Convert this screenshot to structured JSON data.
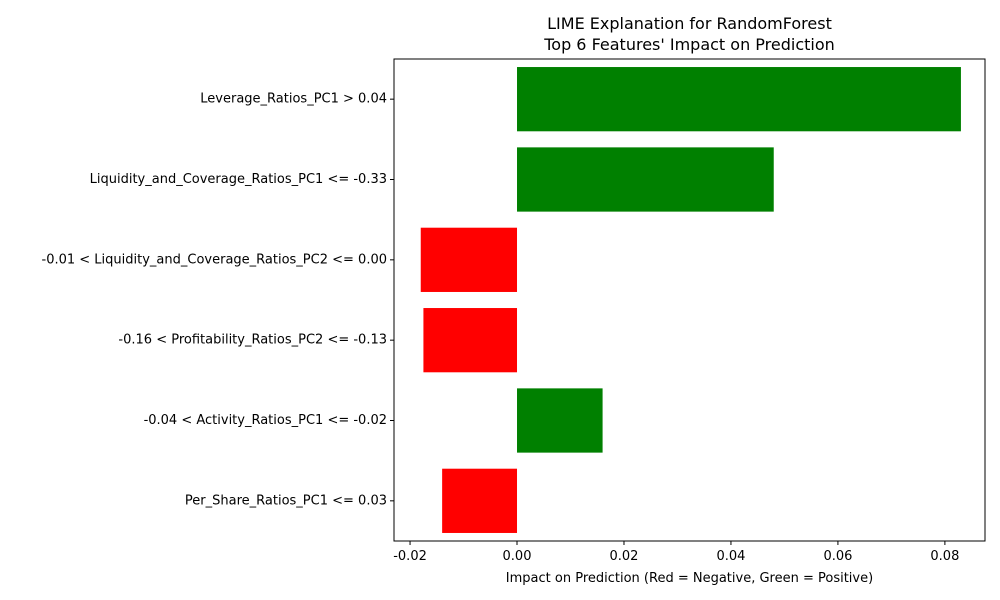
{
  "chart_data": {
    "type": "bar",
    "orientation": "horizontal",
    "title": "LIME Explanation for RandomForest",
    "subtitle": "Top 6 Features' Impact on Prediction",
    "xlabel": "Impact on Prediction (Red = Negative, Green = Positive)",
    "ylabel": "",
    "xlim": [
      -0.023,
      0.0875
    ],
    "xticks": [
      "-0.02",
      "0.00",
      "0.02",
      "0.04",
      "0.06",
      "0.08"
    ],
    "xtick_values": [
      -0.02,
      0.0,
      0.02,
      0.04,
      0.06,
      0.08
    ],
    "categories": [
      "Leverage_Ratios_PC1 > 0.04",
      "Liquidity_and_Coverage_Ratios_PC1 <= -0.33",
      "-0.01 < Liquidity_and_Coverage_Ratios_PC2 <= 0.00",
      "-0.16 < Profitability_Ratios_PC2 <= -0.13",
      "-0.04 < Activity_Ratios_PC1 <= -0.02",
      "Per_Share_Ratios_PC1 <= 0.03"
    ],
    "values": [
      0.083,
      0.048,
      -0.018,
      -0.0175,
      0.016,
      -0.014
    ],
    "colors": {
      "positive": "#008000",
      "negative": "#ff0000"
    },
    "grid": false,
    "legend": "none"
  }
}
